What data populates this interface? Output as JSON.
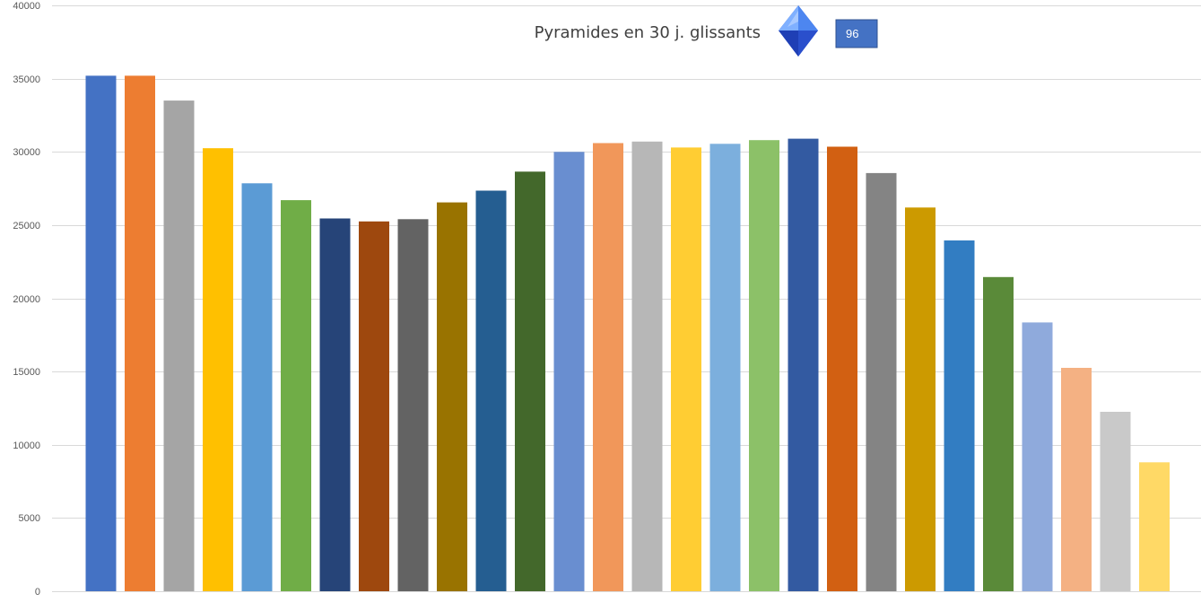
{
  "chart_data": {
    "type": "bar",
    "title": "Pyramides en 30 j. glissants",
    "badge": {
      "value": "96",
      "color": "#4472c4"
    },
    "icon": "blue-diamond-icon",
    "xlabel": "",
    "ylabel": "",
    "ylim": [
      0,
      40000
    ],
    "yticks": [
      "0",
      "5000",
      "10000",
      "15000",
      "20000",
      "25000",
      "30000",
      "35000",
      "40000"
    ],
    "grid": true,
    "values": [
      35200,
      35200,
      33500,
      30250,
      27850,
      26700,
      25450,
      25250,
      25400,
      26550,
      27350,
      28650,
      30000,
      30600,
      30700,
      30300,
      30550,
      30800,
      30900,
      30350,
      28550,
      26200,
      23950,
      21450,
      18350,
      15250,
      12250,
      8800
    ],
    "colors": [
      "#4472c4",
      "#ed7d31",
      "#a5a5a5",
      "#ffc000",
      "#5b9bd5",
      "#70ad47",
      "#264478",
      "#9e480e",
      "#636363",
      "#997300",
      "#255e91",
      "#43682b",
      "#698ed0",
      "#f1975a",
      "#b7b7b7",
      "#ffcd33",
      "#7cafdd",
      "#8cc168",
      "#335aa1",
      "#d26012",
      "#848484",
      "#cc9a00",
      "#327dc2",
      "#5a8a39",
      "#8faadc",
      "#f4b183",
      "#c9c9c9",
      "#ffd966"
    ]
  }
}
